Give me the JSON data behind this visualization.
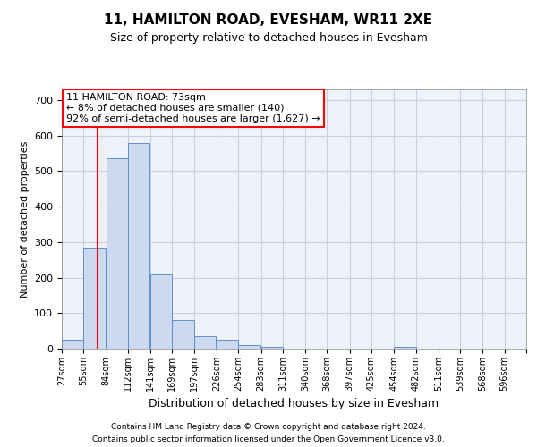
{
  "title1": "11, HAMILTON ROAD, EVESHAM, WR11 2XE",
  "title2": "Size of property relative to detached houses in Evesham",
  "xlabel": "Distribution of detached houses by size in Evesham",
  "ylabel": "Number of detached properties",
  "footer1": "Contains HM Land Registry data © Crown copyright and database right 2024.",
  "footer2": "Contains public sector information licensed under the Open Government Licence v3.0.",
  "bin_labels": [
    "27sqm",
    "55sqm",
    "84sqm",
    "112sqm",
    "141sqm",
    "169sqm",
    "197sqm",
    "226sqm",
    "254sqm",
    "283sqm",
    "311sqm",
    "340sqm",
    "368sqm",
    "397sqm",
    "425sqm",
    "454sqm",
    "482sqm",
    "511sqm",
    "539sqm",
    "568sqm",
    "596sqm"
  ],
  "bin_edges": [
    27,
    55,
    84,
    112,
    141,
    169,
    197,
    226,
    254,
    283,
    311,
    340,
    368,
    397,
    425,
    454,
    482,
    511,
    539,
    568,
    596
  ],
  "bar_heights": [
    25,
    285,
    535,
    580,
    210,
    80,
    35,
    25,
    10,
    5,
    0,
    0,
    0,
    0,
    0,
    5,
    0,
    0,
    0,
    0
  ],
  "bar_color": "#ccd9f0",
  "bar_edge_color": "#6090c8",
  "grid_color": "#c8d0e0",
  "background_color": "#eef2fb",
  "red_line_x": 73,
  "annotation_line1": "11 HAMILTON ROAD: 73sqm",
  "annotation_line2": "← 8% of detached houses are smaller (140)",
  "annotation_line3": "92% of semi-detached houses are larger (1,627) →",
  "annotation_box_color": "white",
  "annotation_box_edge_color": "red",
  "ylim": [
    0,
    730
  ],
  "yticks": [
    0,
    100,
    200,
    300,
    400,
    500,
    600,
    700
  ]
}
